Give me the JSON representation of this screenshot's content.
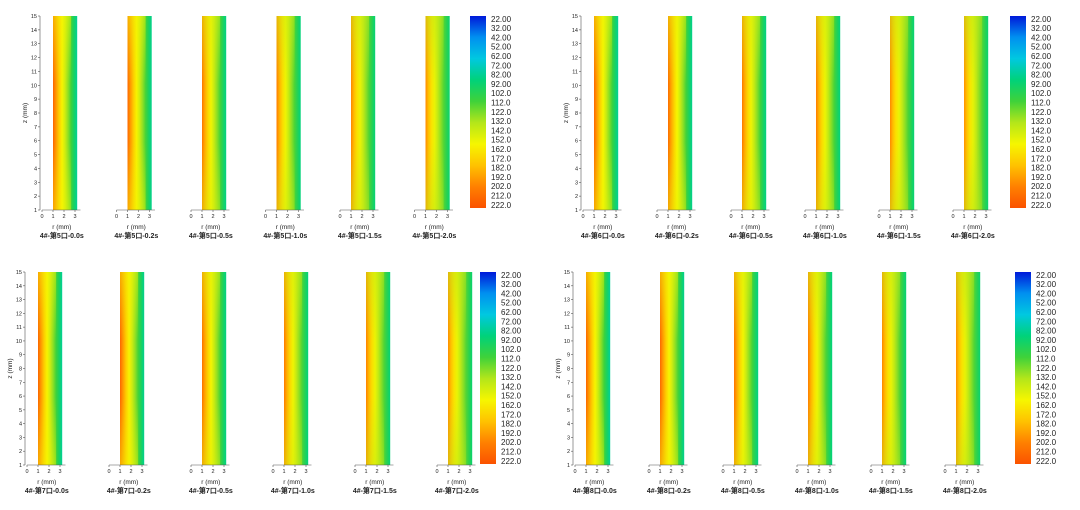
{
  "chart_data": {
    "type": "heatmap",
    "colors": [
      "#0019d9",
      "#0090f0",
      "#00c8e0",
      "#00d27a",
      "#3fd23a",
      "#b4e61a",
      "#f6f600",
      "#ffc200",
      "#ff8000",
      "#fb5200"
    ],
    "colorbar_ticks": [
      "22.00",
      "32.00",
      "42.00",
      "52.00",
      "62.00",
      "72.00",
      "82.00",
      "92.00",
      "102.0",
      "112.0",
      "122.0",
      "132.0",
      "142.0",
      "152.0",
      "162.0",
      "172.0",
      "182.0",
      "192.0",
      "202.0",
      "212.0",
      "222.0"
    ],
    "xlabel": "r (mm)",
    "ylabel": "z (mm)",
    "x_ticks": [
      "0",
      "1",
      "2",
      "3"
    ],
    "y_ticks": [
      "1",
      "2",
      "3",
      "4",
      "5",
      "6",
      "7",
      "8",
      "9",
      "10",
      "11",
      "12",
      "13",
      "14",
      "15"
    ],
    "xlim": [
      0,
      3.5
    ],
    "ylim": [
      1,
      15
    ],
    "groups": [
      {
        "captions": [
          "4#-第5口-0.0s",
          "4#-第5口-0.2s",
          "4#-第5口-0.5s",
          "4#-第5口-1.0s",
          "4#-第5口-1.5s",
          "4#-第5口-2.0s"
        ],
        "peak": [
          214,
          213,
          205,
          202,
          198,
          196
        ]
      },
      {
        "captions": [
          "4#-第6口-0.0s",
          "4#-第6口-0.2s",
          "4#-第6口-0.5s",
          "4#-第6口-1.0s",
          "4#-第6口-1.5s",
          "4#-第6口-2.0s"
        ],
        "peak": [
          212,
          210,
          204,
          201,
          197,
          194
        ]
      },
      {
        "captions": [
          "4#-第7口-0.0s",
          "4#-第7口-0.2s",
          "4#-第7口-0.5s",
          "4#-第7口-1.0s",
          "4#-第7口-1.5s",
          "4#-第7口-2.0s"
        ],
        "peak": [
          214,
          213,
          207,
          203,
          199,
          196
        ]
      },
      {
        "captions": [
          "4#-第8口-0.0s",
          "4#-第8口-0.2s",
          "4#-第8口-0.5s",
          "4#-第8口-1.0s",
          "4#-第8口-1.5s",
          "4#-第8口-2.0s"
        ],
        "peak": [
          213,
          212,
          206,
          202,
          198,
          195
        ]
      }
    ]
  }
}
